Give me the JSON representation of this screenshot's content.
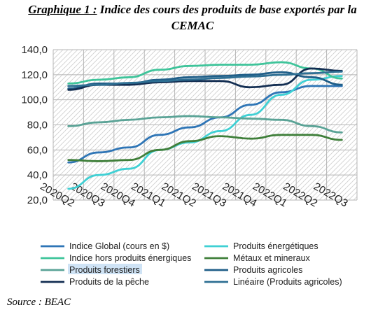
{
  "title": {
    "lead": "Graphique 1 :",
    "text": "Indice des cours des produits de base exportés par la",
    "line2": "CEMAC"
  },
  "source": "Source : BEAC",
  "chart_data": {
    "type": "line",
    "categories": [
      "2020Q2",
      "2020Q3",
      "2020Q4",
      "2021Q1",
      "2021Q2",
      "2021Q3",
      "2021Q4",
      "2022Q1",
      "2022Q2",
      "2022Q3"
    ],
    "ylim": [
      20,
      140
    ],
    "yticks": [
      20,
      40,
      60,
      80,
      100,
      120,
      140
    ],
    "ytick_labels": [
      "20,0",
      "40,0",
      "60,0",
      "80,0",
      "100,0",
      "120,0",
      "140,0"
    ],
    "grid": true,
    "background": "hatched",
    "legend_position": "bottom",
    "series": [
      {
        "name": "Indice Global (cours en $)",
        "color": "#2e75b6",
        "values": [
          50,
          58,
          62,
          72,
          78,
          86,
          96,
          106,
          111,
          111
        ]
      },
      {
        "name": "Produits énergétiques",
        "color": "#3fd0d4",
        "values": [
          29,
          40,
          45,
          60,
          66,
          75,
          88,
          104,
          116,
          119
        ]
      },
      {
        "name": "Indice hors produits énergiques",
        "color": "#3ec49a",
        "values": [
          113,
          116,
          118,
          124,
          127,
          128,
          128,
          130,
          125,
          117
        ]
      },
      {
        "name": "Métaux et mineraux",
        "color": "#3f7f3a",
        "values": [
          52,
          51,
          52,
          60,
          67,
          71,
          69,
          72,
          72,
          68
        ]
      },
      {
        "name": "Produits forestiers",
        "color": "#5aa396",
        "values": [
          79,
          82,
          84,
          86,
          87,
          86,
          85,
          84,
          79,
          74
        ]
      },
      {
        "name": "Produits agricoles",
        "color": "#1f5e88",
        "values": [
          109,
          113,
          113,
          116,
          118,
          119,
          120,
          122,
          118,
          112
        ]
      },
      {
        "name": "Produits de la pêche",
        "color": "#132e52",
        "values": [
          108,
          112,
          112,
          114,
          115,
          115,
          110,
          112,
          125,
          123
        ]
      },
      {
        "name": "Linéaire (Produits agricoles)",
        "color": "#2e6f93",
        "values": [
          111.0,
          112.0,
          113.5,
          114.9,
          116.1,
          117.4,
          118.6,
          119.9,
          121.2,
          122.5
        ]
      }
    ]
  }
}
